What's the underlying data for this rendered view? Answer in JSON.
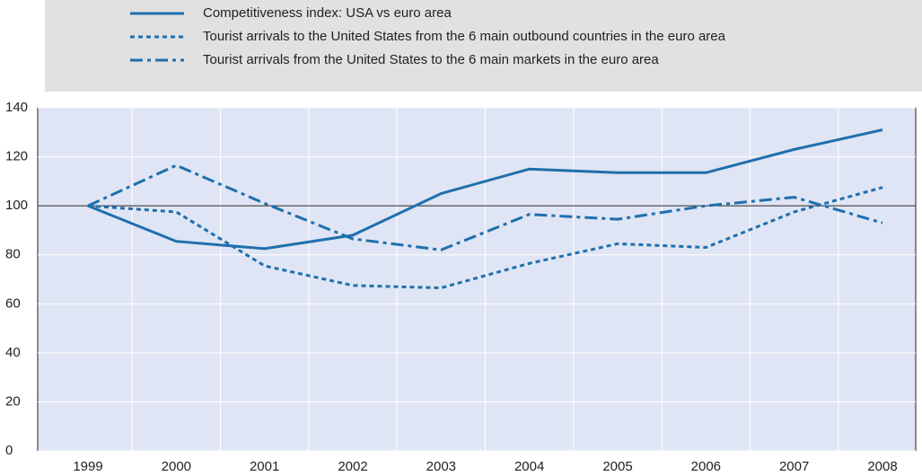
{
  "chart_data": {
    "type": "line",
    "categories": [
      "1999",
      "2000",
      "2001",
      "2002",
      "2003",
      "2004",
      "2005",
      "2006",
      "2007",
      "2008"
    ],
    "series": [
      {
        "name": "Competitiveness index: USA vs euro area",
        "color": "#1f6fad",
        "dash": "solid",
        "values": [
          100,
          85.5,
          82.5,
          88,
          105,
          115,
          113.5,
          113.5,
          123,
          131
        ]
      },
      {
        "name": "Tourist arrivals to the United States from the 6 main outbound countries in the euro area",
        "color": "#1f6fad",
        "dash": "dotted",
        "values": [
          100,
          97.5,
          75.5,
          67.5,
          66.5,
          76.5,
          84.5,
          83,
          97.5,
          107.5
        ]
      },
      {
        "name": "Tourist arrivals from the United States to the 6 main markets in the euro area",
        "color": "#1f6fad",
        "dash": "dashdot",
        "values": [
          100,
          116.5,
          101,
          86.5,
          82,
          96.5,
          94.5,
          100,
          103.5,
          93
        ]
      }
    ],
    "ylim": [
      0,
      140
    ],
    "yticks": [
      0,
      20,
      40,
      60,
      80,
      100,
      120,
      140
    ],
    "grid": true,
    "reference_line": 100,
    "legend": "top"
  }
}
